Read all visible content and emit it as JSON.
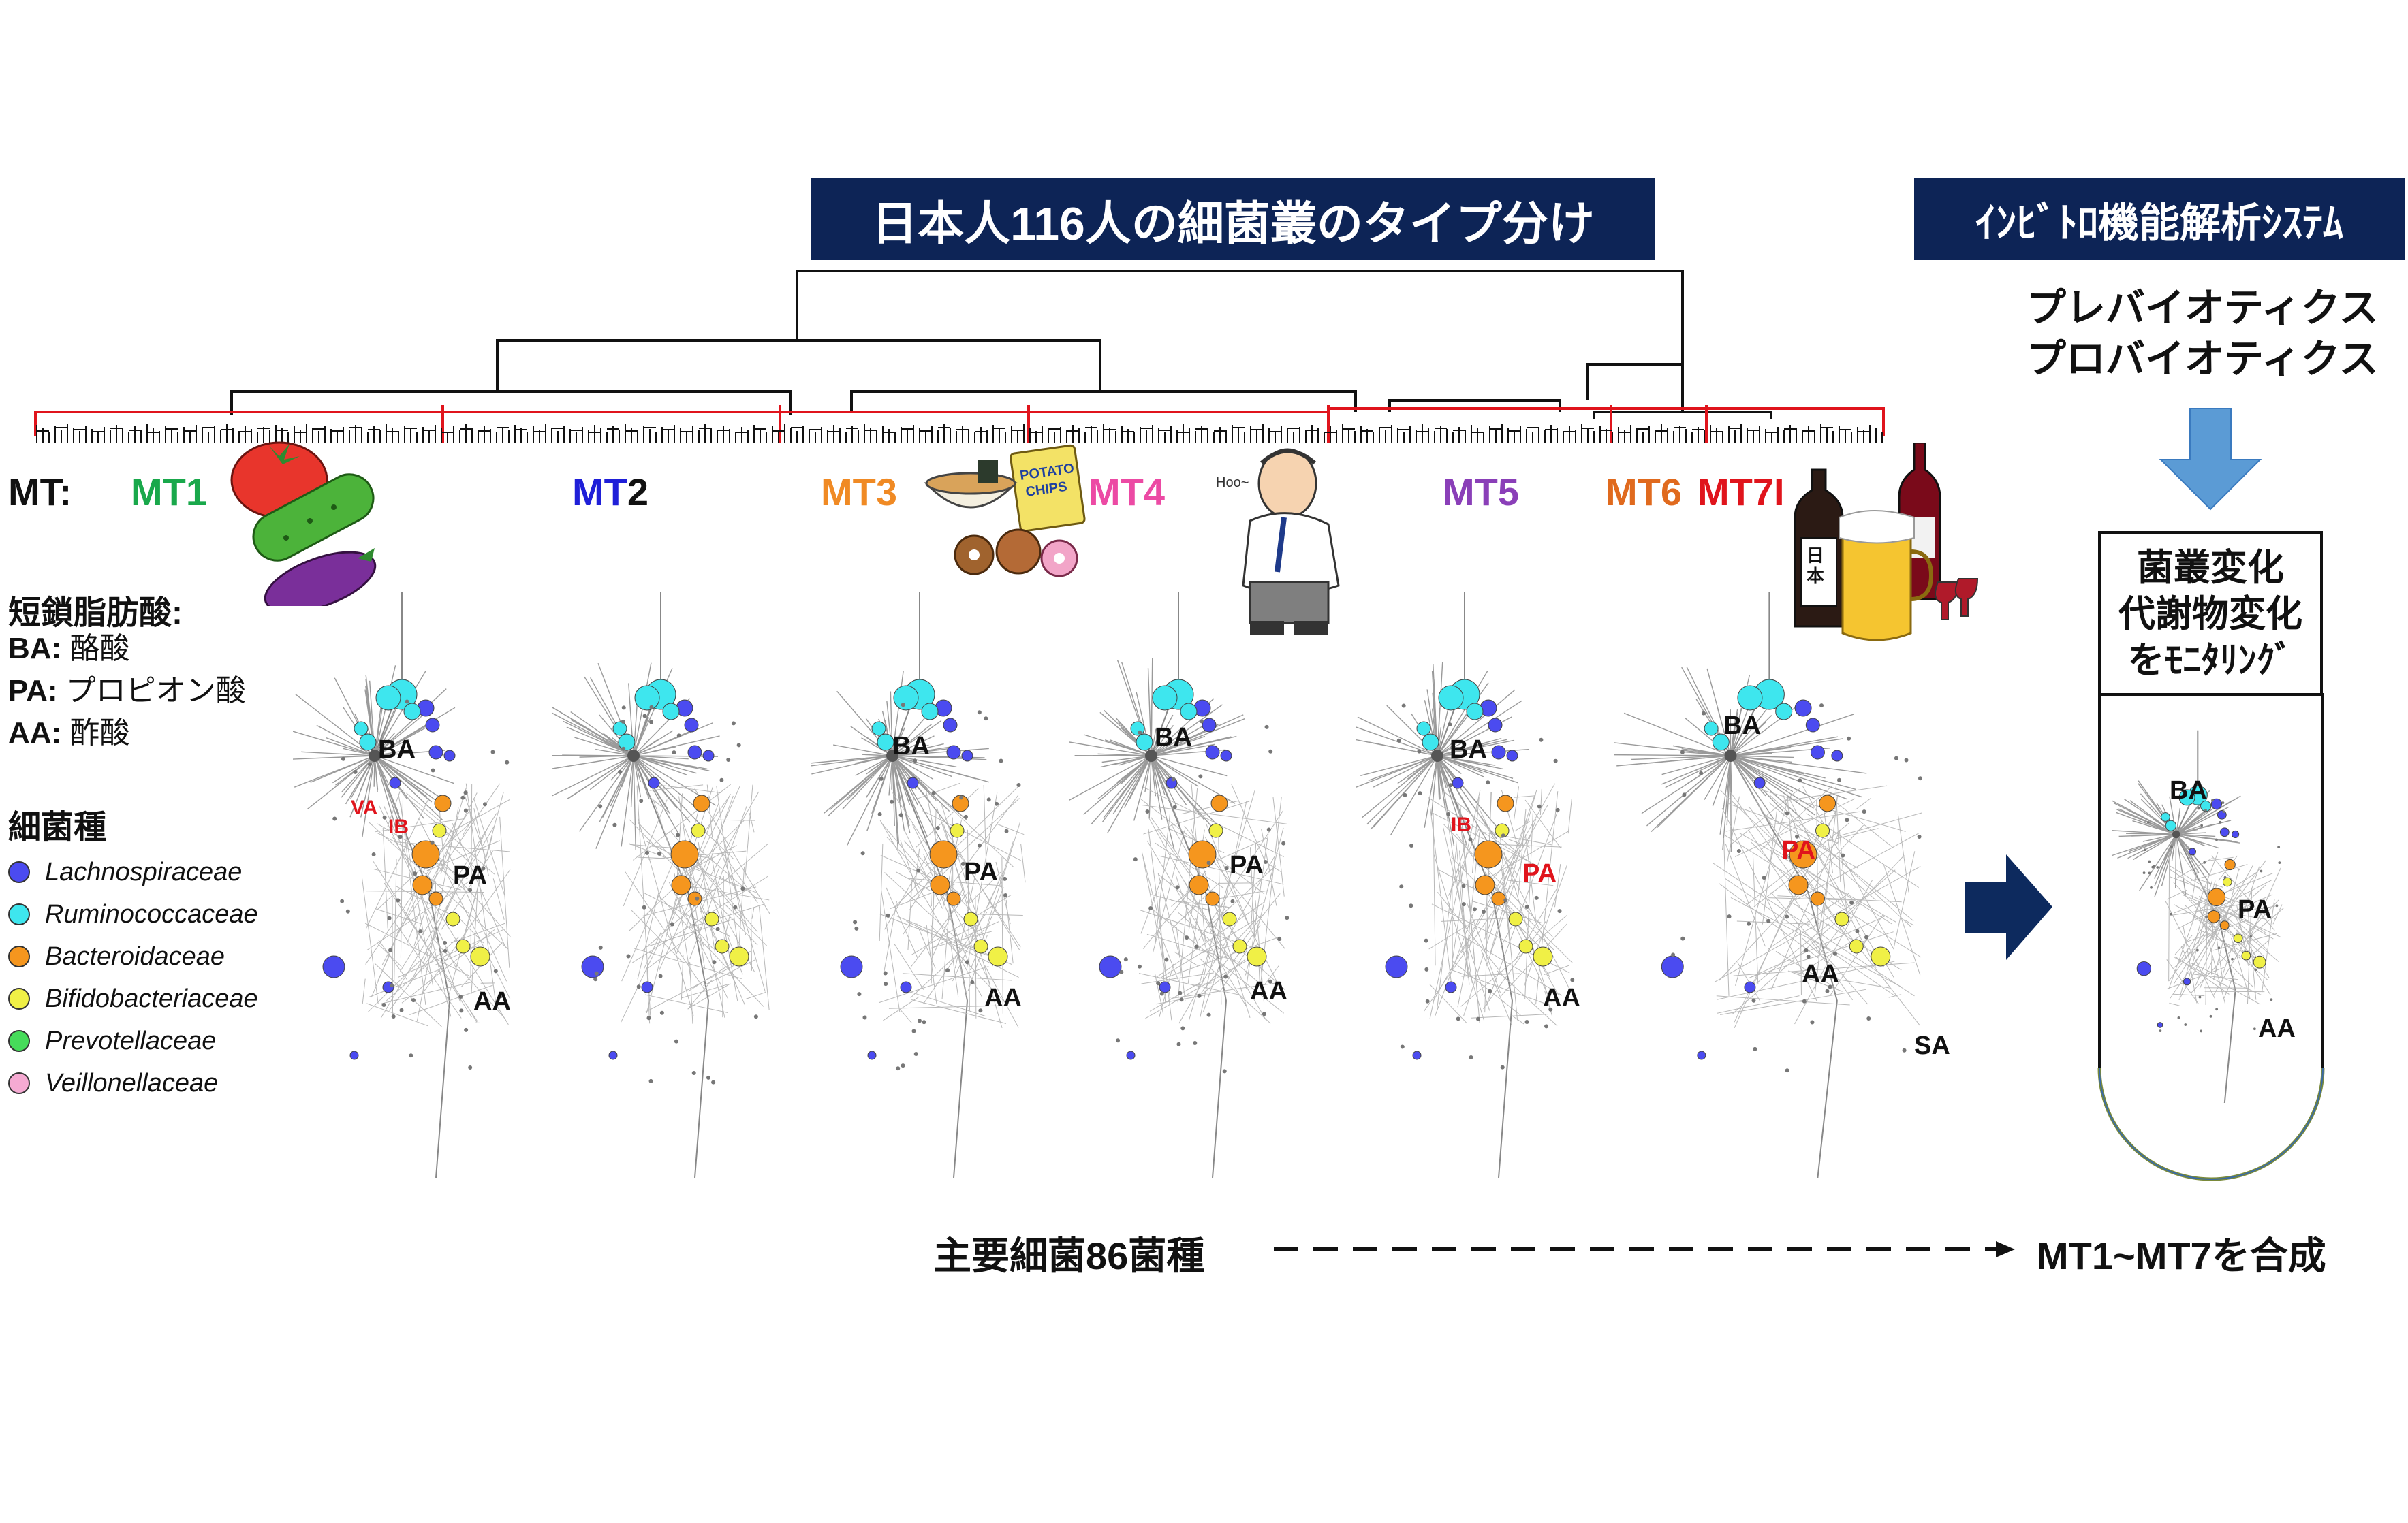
{
  "header": {
    "main_title": "日本人116人の細菌叢のタイプ分け",
    "system_title": "ｲﾝﾋﾞﾄﾛ機能解析ｼｽﾃﾑ",
    "system_line1": "プレバイオティクス",
    "system_line2": "プロバイオティクス"
  },
  "mt_labels": {
    "prefix": "MT",
    "colon": ":",
    "mt1": "MT1",
    "mt2_a": "MT",
    "mt2_b": "2",
    "mt3": "MT3",
    "mt4": "MT4",
    "mt5": "MT5",
    "mt6": "MT6",
    "mt7": "MT7I"
  },
  "scfa": {
    "heading": "短鎖脂肪酸:",
    "items": [
      {
        "abbr": "BA",
        "colon": ":",
        "name": " 酪酸"
      },
      {
        "abbr": "PA",
        "colon": ":",
        "name": " プロピオン酸"
      },
      {
        "abbr": "AA",
        "colon": ":",
        "name": " 酢酸"
      }
    ]
  },
  "legend": {
    "heading": "細菌種",
    "items": [
      {
        "name": "Lachnospiraceae",
        "color": "#4b4bf0"
      },
      {
        "name": "Ruminococcaceae",
        "color": "#3ee6ee"
      },
      {
        "name": "Bacteroidaceae",
        "color": "#f5961e"
      },
      {
        "name": "Bifidobacteriaceae",
        "color": "#f0f046"
      },
      {
        "name": "Prevotellaceae",
        "color": "#46dc5a"
      },
      {
        "name": "Veillonellaceae",
        "color": "#f5aad2"
      }
    ]
  },
  "networks": {
    "ba": "BA",
    "pa": "PA",
    "aa": "AA",
    "sa": "SA",
    "va": "VA",
    "ib": "IB"
  },
  "tube": {
    "line1": "菌叢変化",
    "line2": "代謝物変化",
    "line3": "をﾓﾆﾀﾘﾝｸﾞ"
  },
  "footer": {
    "left": "主要細菌86菌種",
    "right": "MT1~MT7を合成"
  },
  "colors": {
    "navy": "#0d2456",
    "mt1": "#19a84b",
    "mt2": "#1f1fd8",
    "mt3": "#f08a24",
    "mt4": "#ec4aa4",
    "mt5": "#8a3fb8",
    "mt6": "#e06a1e",
    "mt7": "#e0141c",
    "arrow_blue": "#5b9bd5",
    "arrow_navy": "#0d2a5e"
  }
}
